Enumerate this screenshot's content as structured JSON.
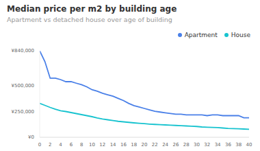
{
  "chart_data": {
    "type": "line",
    "title": "Median price per m2 by building age",
    "subtitle": "Apartment vs detached house over age of building",
    "x": [
      0,
      1,
      2,
      3,
      4,
      5,
      6,
      7,
      8,
      9,
      10,
      11,
      12,
      13,
      14,
      15,
      16,
      17,
      18,
      19,
      20,
      21,
      22,
      23,
      24,
      25,
      26,
      27,
      28,
      29,
      30,
      31,
      32,
      33,
      34,
      35,
      36,
      37,
      38,
      39,
      40
    ],
    "series": [
      {
        "name": "Apartment",
        "color": "#4a80e8",
        "values": [
          840000,
          735000,
          574000,
          574000,
          560000,
          540000,
          540000,
          525000,
          511000,
          490000,
          462000,
          448000,
          427000,
          413000,
          399000,
          378000,
          357000,
          329000,
          308000,
          294000,
          280000,
          266000,
          252000,
          245000,
          238000,
          231000,
          224000,
          224000,
          217000,
          217000,
          217000,
          217000,
          210000,
          217000,
          217000,
          210000,
          210000,
          210000,
          210000,
          189000,
          189000
        ]
      },
      {
        "name": "House",
        "color": "#17c3cf",
        "values": [
          330000,
          310000,
          290000,
          272000,
          258000,
          250000,
          240000,
          230000,
          220000,
          210000,
          200000,
          188000,
          178000,
          170000,
          162000,
          155000,
          150000,
          145000,
          140000,
          136000,
          132000,
          128000,
          125000,
          122000,
          120000,
          118000,
          115000,
          112000,
          110000,
          108000,
          105000,
          100000,
          98000,
          96000,
          94000,
          90000,
          86000,
          84000,
          82000,
          80000,
          78000
        ]
      }
    ],
    "xlim": [
      0,
      40
    ],
    "xticks": [
      0,
      2,
      4,
      6,
      8,
      10,
      12,
      14,
      16,
      18,
      20,
      22,
      24,
      26,
      28,
      30,
      32,
      34,
      36,
      38,
      40
    ],
    "ylim": [
      0,
      840000
    ],
    "yticks": [
      {
        "value": 0,
        "label": "¥0"
      },
      {
        "value": 250000,
        "label": "¥250,000"
      },
      {
        "value": 500000,
        "label": "¥500,000"
      },
      {
        "value": 840000,
        "label": "¥840,000"
      }
    ],
    "grid": false,
    "legend": "top-right",
    "marker": "none"
  }
}
